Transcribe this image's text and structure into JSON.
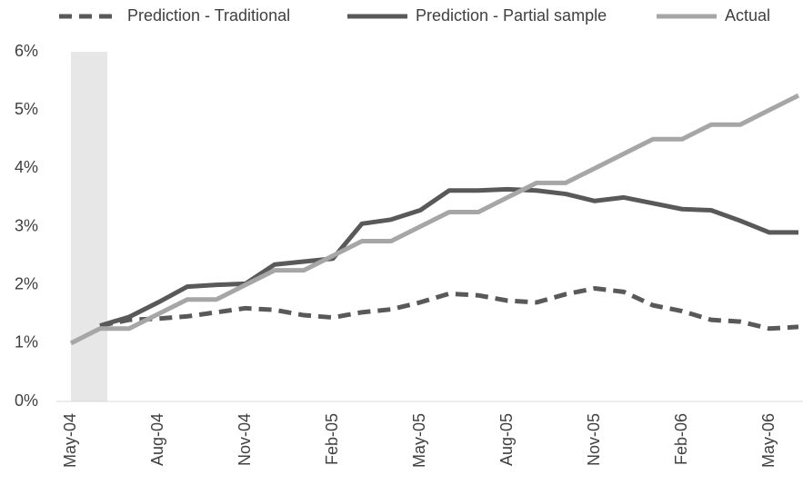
{
  "chart_data": {
    "type": "line",
    "categories": [
      "May-04",
      null,
      null,
      "Aug-04",
      null,
      null,
      "Nov-04",
      null,
      null,
      "Feb-05",
      null,
      null,
      "May-05",
      null,
      null,
      "Aug-05",
      null,
      null,
      "Nov-05",
      null,
      null,
      "Feb-06",
      null,
      null,
      "May-06",
      null
    ],
    "series": [
      {
        "name": "Prediction - Traditional",
        "color": "#595959",
        "dashed": true,
        "values": [
          null,
          1.3,
          1.4,
          1.42,
          1.46,
          1.53,
          1.6,
          1.57,
          1.48,
          1.44,
          1.53,
          1.58,
          1.7,
          1.85,
          1.82,
          1.73,
          1.7,
          1.84,
          1.94,
          1.88,
          1.65,
          1.55,
          1.4,
          1.37,
          1.25,
          1.28
        ]
      },
      {
        "name": "Prediction - Partial sample",
        "color": "#595959",
        "dashed": false,
        "values": [
          null,
          1.3,
          1.45,
          1.7,
          1.97,
          2.0,
          2.02,
          2.35,
          2.4,
          2.45,
          3.05,
          3.12,
          3.28,
          3.62,
          3.62,
          3.64,
          3.62,
          3.56,
          3.44,
          3.5,
          3.4,
          3.3,
          3.28,
          3.1,
          2.9,
          2.9
        ]
      },
      {
        "name": "Actual",
        "color": "#a6a6a6",
        "dashed": false,
        "values": [
          1.0,
          1.25,
          1.25,
          1.5,
          1.75,
          1.75,
          2.0,
          2.25,
          2.25,
          2.5,
          2.75,
          2.75,
          3.0,
          3.25,
          3.25,
          3.5,
          3.75,
          3.75,
          4.0,
          4.25,
          4.5,
          4.5,
          4.75,
          4.75,
          5.0,
          5.25
        ]
      }
    ],
    "ylim": [
      0,
      6
    ],
    "yticks": [
      {
        "value": 0,
        "label": "0%"
      },
      {
        "value": 1,
        "label": "1%"
      },
      {
        "value": 2,
        "label": "2%"
      },
      {
        "value": 3,
        "label": "3%"
      },
      {
        "value": 4,
        "label": "4%"
      },
      {
        "value": 5,
        "label": "5%"
      },
      {
        "value": 6,
        "label": "6%"
      }
    ],
    "grid": false,
    "legend": "top"
  }
}
